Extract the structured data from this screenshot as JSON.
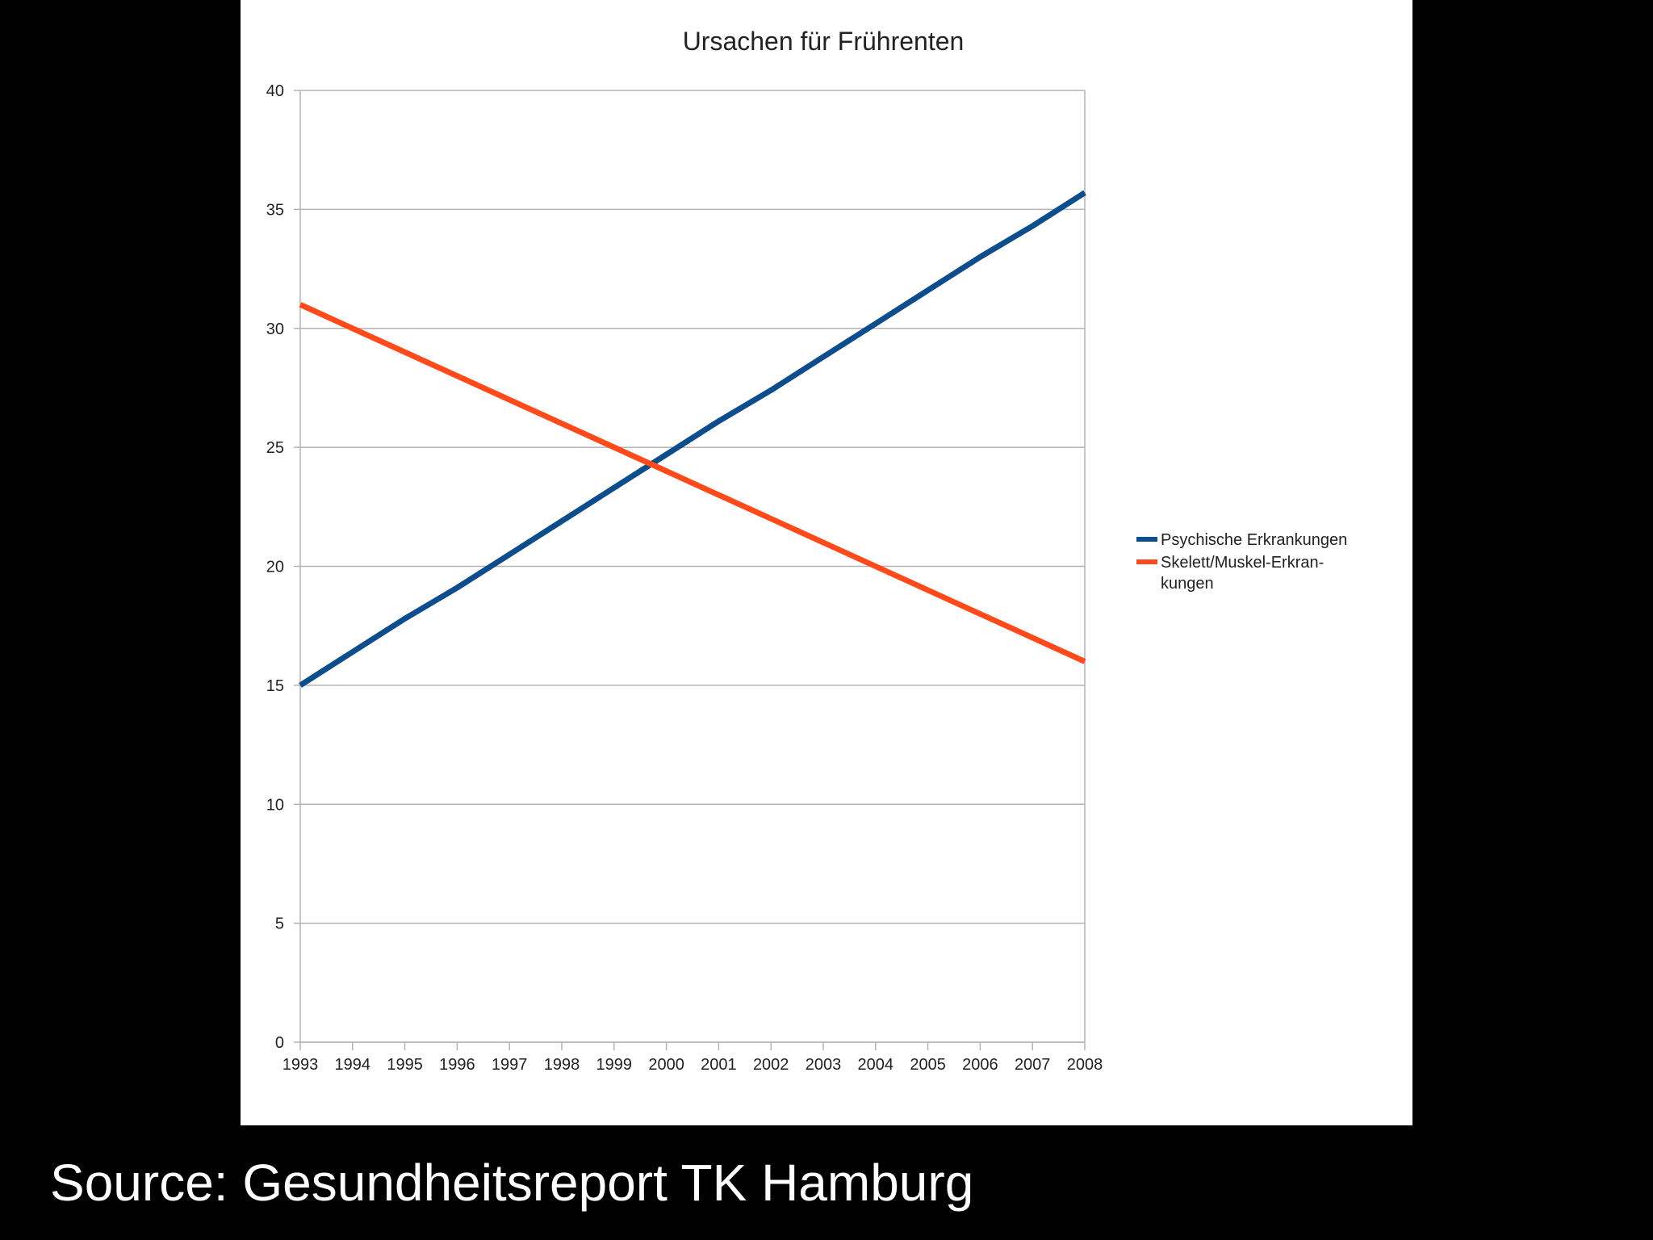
{
  "caption": "Source: Gesundheitsreport TK Hamburg",
  "chart_data": {
    "type": "line",
    "title": "Ursachen für Frührenten",
    "xlabel": "",
    "ylabel": "",
    "x": [
      "1993",
      "1994",
      "1995",
      "1996",
      "1997",
      "1998",
      "1999",
      "2000",
      "2001",
      "2002",
      "2003",
      "2004",
      "2005",
      "2006",
      "2007",
      "2008"
    ],
    "ylim": [
      0,
      40
    ],
    "yticks": [
      "0",
      "5",
      "10",
      "15",
      "20",
      "25",
      "30",
      "35",
      "40"
    ],
    "grid": true,
    "legend_position": "right",
    "series": [
      {
        "name": "Psychische Erkrankungen",
        "color": "#0e4d8c",
        "values": [
          15.0,
          16.4,
          17.8,
          19.1,
          20.5,
          21.9,
          23.3,
          24.7,
          26.1,
          27.4,
          28.8,
          30.2,
          31.6,
          33.0,
          34.3,
          35.7
        ]
      },
      {
        "name": "Skelett/Muskel-Erkran-",
        "name_line2": "kungen",
        "color": "#ff4a1c",
        "values": [
          31.0,
          30.0,
          29.0,
          28.0,
          27.0,
          26.0,
          25.0,
          24.0,
          23.0,
          22.0,
          21.0,
          20.0,
          19.0,
          18.0,
          17.0,
          16.0
        ]
      }
    ]
  }
}
